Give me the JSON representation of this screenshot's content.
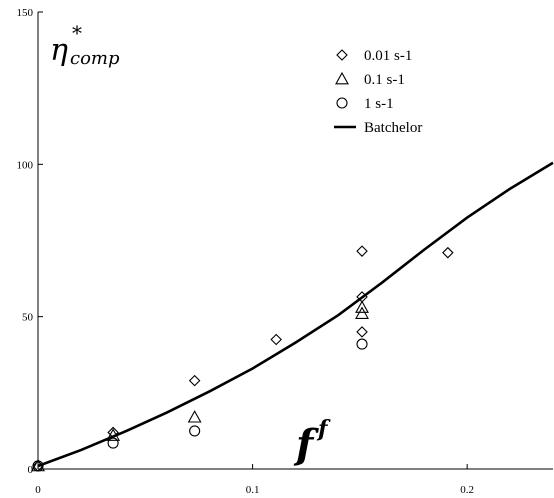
{
  "chart_data": {
    "type": "scatter",
    "title": "",
    "xlabel": {
      "main": "f",
      "sup": "f"
    },
    "ylabel": {
      "main": "η",
      "sub": "comp",
      "sup": "*"
    },
    "xlim": [
      0,
      0.24
    ],
    "ylim": [
      0,
      150
    ],
    "x_ticks": [
      0,
      0.1,
      0.2
    ],
    "x_tick_labels": [
      "0",
      "0.1",
      "0.2"
    ],
    "y_ticks": [
      0,
      50,
      100,
      150
    ],
    "y_tick_labels": [
      "0",
      "50",
      "100",
      "150"
    ],
    "grid": false,
    "legend_position": "top-right",
    "series": [
      {
        "name": "0.01 s-1",
        "marker": "diamond",
        "points": [
          {
            "x": 0,
            "y": 1
          },
          {
            "x": 0.035,
            "y": 12
          },
          {
            "x": 0.073,
            "y": 29
          },
          {
            "x": 0.111,
            "y": 42.5
          },
          {
            "x": 0.151,
            "y": 71.5
          },
          {
            "x": 0.151,
            "y": 56.5
          },
          {
            "x": 0.151,
            "y": 45
          },
          {
            "x": 0.191,
            "y": 71
          }
        ]
      },
      {
        "name": "0.1 s-1",
        "marker": "triangle",
        "points": [
          {
            "x": 0,
            "y": 1
          },
          {
            "x": 0.035,
            "y": 11
          },
          {
            "x": 0.073,
            "y": 17
          },
          {
            "x": 0.151,
            "y": 53
          },
          {
            "x": 0.151,
            "y": 51
          }
        ]
      },
      {
        "name": "1 s-1",
        "marker": "circle",
        "points": [
          {
            "x": 0,
            "y": 1
          },
          {
            "x": 0.035,
            "y": 8.5
          },
          {
            "x": 0.073,
            "y": 12.5
          },
          {
            "x": 0.151,
            "y": 41
          }
        ]
      },
      {
        "name": "Batchelor",
        "type": "line",
        "points": [
          {
            "x": 0,
            "y": 1
          },
          {
            "x": 0.02,
            "y": 6.2
          },
          {
            "x": 0.04,
            "y": 12.1
          },
          {
            "x": 0.06,
            "y": 18.5
          },
          {
            "x": 0.08,
            "y": 25.5
          },
          {
            "x": 0.1,
            "y": 33
          },
          {
            "x": 0.12,
            "y": 41.5
          },
          {
            "x": 0.14,
            "y": 50.5
          },
          {
            "x": 0.16,
            "y": 61
          },
          {
            "x": 0.18,
            "y": 72
          },
          {
            "x": 0.2,
            "y": 82.5
          },
          {
            "x": 0.22,
            "y": 92
          },
          {
            "x": 0.24,
            "y": 100.5
          }
        ]
      }
    ]
  }
}
